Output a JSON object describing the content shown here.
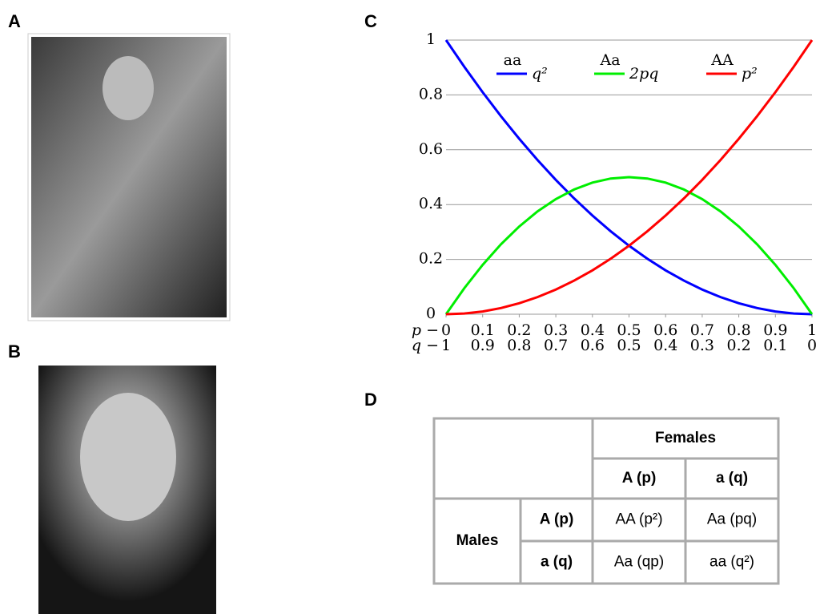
{
  "panel_labels": [
    "A",
    "B",
    "C",
    "D"
  ],
  "chart_data": {
    "type": "line",
    "x": [
      0,
      0.05,
      0.1,
      0.15,
      0.2,
      0.25,
      0.3,
      0.35,
      0.4,
      0.45,
      0.5,
      0.55,
      0.6,
      0.65,
      0.7,
      0.75,
      0.8,
      0.85,
      0.9,
      0.95,
      1
    ],
    "series": [
      {
        "name": "aa",
        "formula": "q²",
        "color": "#0000ff",
        "values": [
          1,
          0.9025,
          0.81,
          0.7225,
          0.64,
          0.5625,
          0.49,
          0.4225,
          0.36,
          0.3025,
          0.25,
          0.2025,
          0.16,
          0.1225,
          0.09,
          0.0625,
          0.04,
          0.0225,
          0.01,
          0.0025,
          0
        ]
      },
      {
        "name": "Aa",
        "formula": "2pq",
        "color": "#00ee00",
        "values": [
          0,
          0.095,
          0.18,
          0.255,
          0.32,
          0.375,
          0.42,
          0.455,
          0.48,
          0.495,
          0.5,
          0.495,
          0.48,
          0.455,
          0.42,
          0.375,
          0.32,
          0.255,
          0.18,
          0.095,
          0
        ]
      },
      {
        "name": "AA",
        "formula": "p²",
        "color": "#ff0000",
        "values": [
          0,
          0.0025,
          0.01,
          0.0225,
          0.04,
          0.0625,
          0.09,
          0.1225,
          0.16,
          0.2025,
          0.25,
          0.3025,
          0.36,
          0.4225,
          0.49,
          0.5625,
          0.64,
          0.7225,
          0.81,
          0.9025,
          1
        ]
      }
    ],
    "xlim": [
      0,
      1
    ],
    "ylim": [
      0,
      1
    ],
    "xticks": [
      0,
      0.1,
      0.2,
      0.3,
      0.4,
      0.5,
      0.6,
      0.7,
      0.8,
      0.9,
      1
    ],
    "q_ticks": [
      1,
      0.9,
      0.8,
      0.7,
      0.6,
      0.5,
      0.4,
      0.3,
      0.2,
      0.1,
      0
    ],
    "x_row_labels": [
      "p −",
      "q −"
    ],
    "yticks": [
      0,
      0.2,
      0.4,
      0.6,
      0.8,
      1
    ],
    "grid": true
  },
  "table": {
    "column_group": "Females",
    "row_group": "Males",
    "columns": [
      "A (p)",
      "a (q)"
    ],
    "rows": [
      [
        "A (p)",
        "AA (p²)",
        "Aa (pq)"
      ],
      [
        "a (q)",
        "Aa (qp)",
        "aa (q²)"
      ]
    ]
  }
}
